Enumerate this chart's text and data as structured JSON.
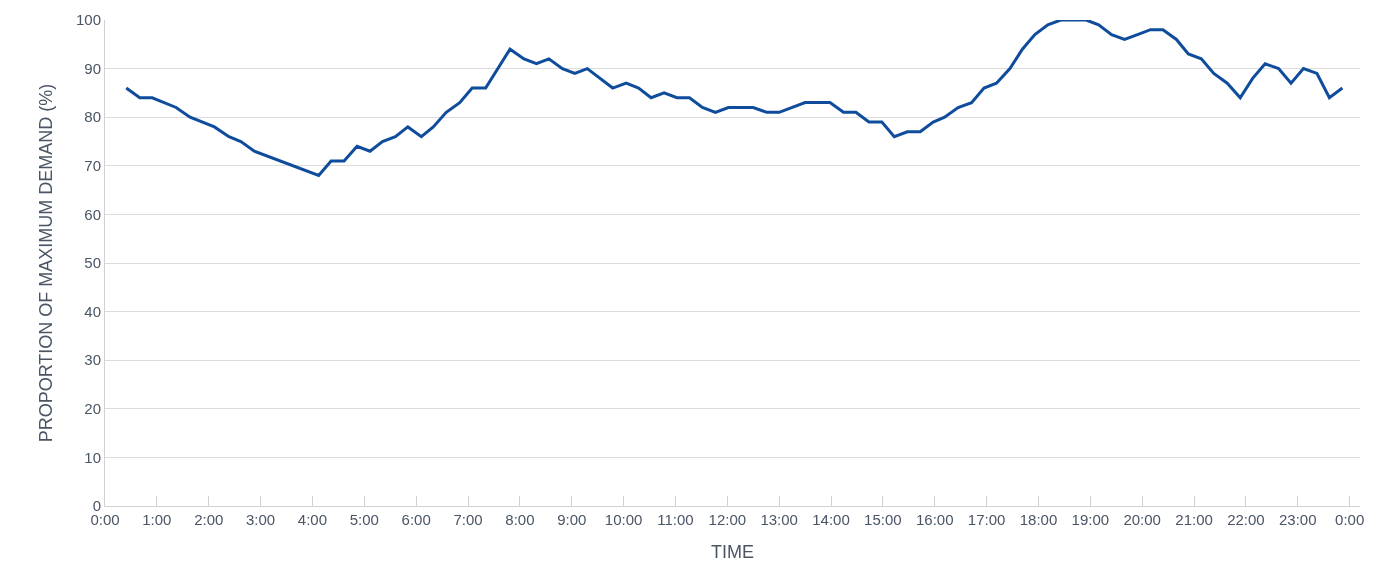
{
  "chart_data": {
    "type": "line",
    "xlabel": "TIME",
    "ylabel": "PROPORTION OF MAXIMUM DEMAND (%)",
    "x": [
      0.41,
      0.67,
      0.91,
      1.37,
      1.64,
      2.11,
      2.39,
      2.62,
      2.88,
      4.12,
      4.36,
      4.61,
      4.86,
      5.11,
      5.35,
      5.6,
      5.84,
      6.1,
      6.33,
      6.58,
      6.84,
      7.08,
      7.34,
      7.81,
      8.08,
      8.32,
      8.56,
      8.82,
      9.06,
      9.3,
      9.79,
      10.05,
      10.29,
      10.53,
      10.78,
      11.03,
      11.27,
      11.52,
      11.77,
      12.02,
      12.5,
      12.76,
      13,
      13.5,
      13.98,
      14.24,
      14.48,
      14.73,
      14.98,
      15.22,
      15.47,
      15.72,
      15.97,
      16.19,
      16.45,
      16.71,
      16.95,
      17.19,
      17.45,
      17.69,
      17.93,
      18.18,
      18.43,
      18.92,
      19.16,
      19.41,
      19.66,
      19.91,
      20.16,
      20.4,
      20.66,
      20.89,
      21.14,
      21.38,
      21.64,
      21.89,
      22.13,
      22.37,
      22.63,
      22.87,
      23.11,
      23.37,
      23.61,
      23.86
    ],
    "series": [
      {
        "color": "#0f4c9c",
        "values": [
          86,
          84,
          84,
          82,
          80,
          78,
          76,
          75,
          73,
          68,
          71,
          71,
          74,
          73,
          75,
          76,
          78,
          76,
          78,
          81,
          83,
          86,
          86,
          94,
          92,
          91,
          92,
          90,
          89,
          90,
          86,
          87,
          86,
          84,
          85,
          84,
          84,
          82,
          81,
          82,
          82,
          81,
          81,
          83,
          83,
          81,
          81,
          79,
          79,
          76,
          77,
          77,
          79,
          80,
          82,
          83,
          86,
          87,
          90,
          94,
          97,
          99,
          100,
          100,
          99,
          97,
          96,
          97,
          98,
          98,
          96,
          93,
          92,
          89,
          87,
          84,
          88,
          91,
          90,
          87,
          90,
          89,
          84,
          86
        ]
      }
    ],
    "xlim": [
      0,
      24.2
    ],
    "xticks": [
      {
        "value": 0,
        "label": "0:00"
      },
      {
        "value": 1,
        "label": "1:00"
      },
      {
        "value": 2,
        "label": "2:00"
      },
      {
        "value": 3,
        "label": "3:00"
      },
      {
        "value": 4,
        "label": "4:00"
      },
      {
        "value": 5,
        "label": "5:00"
      },
      {
        "value": 6,
        "label": "6:00"
      },
      {
        "value": 7,
        "label": "7:00"
      },
      {
        "value": 8,
        "label": "8:00"
      },
      {
        "value": 9,
        "label": "9:00"
      },
      {
        "value": 10,
        "label": "10:00"
      },
      {
        "value": 11,
        "label": "11:00"
      },
      {
        "value": 12,
        "label": "12:00"
      },
      {
        "value": 13,
        "label": "13:00"
      },
      {
        "value": 14,
        "label": "14:00"
      },
      {
        "value": 15,
        "label": "15:00"
      },
      {
        "value": 16,
        "label": "16:00"
      },
      {
        "value": 17,
        "label": "17:00"
      },
      {
        "value": 18,
        "label": "18:00"
      },
      {
        "value": 19,
        "label": "19:00"
      },
      {
        "value": 20,
        "label": "20:00"
      },
      {
        "value": 21,
        "label": "21:00"
      },
      {
        "value": 22,
        "label": "22:00"
      },
      {
        "value": 23,
        "label": "23:00"
      },
      {
        "value": 24,
        "label": "0:00"
      }
    ],
    "ylim": [
      0,
      100
    ],
    "yticks": [
      0,
      10,
      20,
      30,
      40,
      50,
      60,
      70,
      80,
      90,
      100
    ],
    "grid": "y",
    "marker": "none",
    "line_style": "solid"
  }
}
